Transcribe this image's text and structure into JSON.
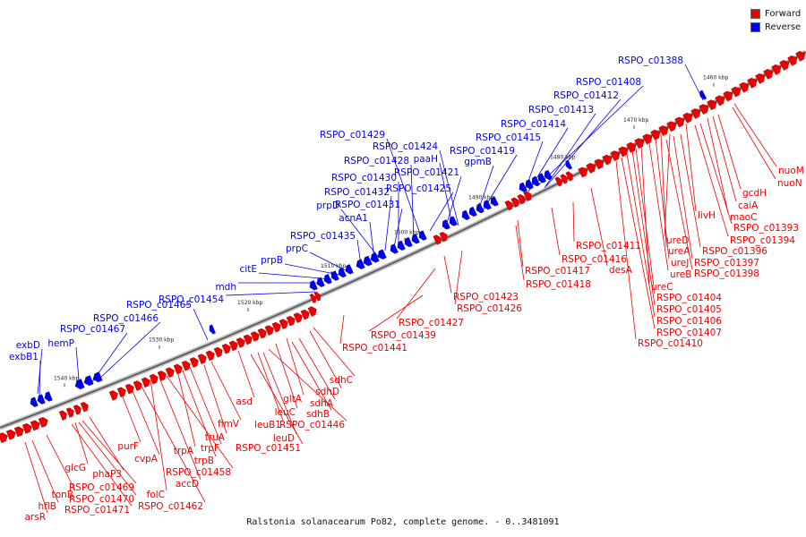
{
  "legend": [
    {
      "label": "Forward",
      "color": "#ee0000"
    },
    {
      "label": "Reverse",
      "color": "#0000ee"
    }
  ],
  "caption": "Ralstonia solanacearum Po82, complete genome. - 0..3481091",
  "ticks": [
    "1460 kbp",
    "1470 kbp",
    "1480 kbp",
    "1490 kbp",
    "1500 kbp",
    "1510 kbp",
    "1520 kbp",
    "1530 kbp",
    "1540 kbp"
  ],
  "colors": {
    "forward": "#ee0000",
    "reverse": "#0000ee",
    "backbone": "#888888"
  },
  "reverse_labels": [
    "RSPO_c01388",
    "RSPO_c01408",
    "RSPO_c01412",
    "RSPO_c01413",
    "RSPO_c01414",
    "RSPO_c01415",
    "RSPO_c01419",
    "gpmB",
    "RSPO_c01429",
    "RSPO_c01424",
    "paaH",
    "RSPO_c01428",
    "RSPO_c01421",
    "RSPO_c01430",
    "RSPO_c01425",
    "RSPO_c01432",
    "RSPO_c01431",
    "prpD",
    "acnA1",
    "RSPO_c01435",
    "prpC",
    "prpB",
    "citE",
    "mdh",
    "RSPO_c01454",
    "RSPO_c01465",
    "RSPO_c01466",
    "RSPO_c01467",
    "hemP",
    "exbD",
    "exbB1"
  ],
  "forward_labels_right": [
    "nuoM",
    "nuoN",
    "gcdH",
    "caiA",
    "maoC",
    "livH",
    "RSPO_c01393",
    "RSPO_c01394",
    "ureD",
    "RSPO_c01396",
    "ureA",
    "RSPO_c01397",
    "ureJ",
    "RSPO_c01398",
    "ureB",
    "ureC",
    "RSPO_c01404",
    "RSPO_c01405",
    "RSPO_c01406",
    "RSPO_c01407",
    "RSPO_c01410",
    "RSPO_c01411",
    "RSPO_c01416",
    "desA",
    "RSPO_c01417",
    "RSPO_c01418",
    "RSPO_c01423",
    "RSPO_c01426",
    "RSPO_c01427",
    "RSPO_c01439",
    "RSPO_c01441"
  ],
  "forward_labels_left": [
    "sdhC",
    "sdhD",
    "gltA",
    "sdhA",
    "leuC",
    "sdhB",
    "RSPO_c01446",
    "asd",
    "leuB1",
    "leuD",
    "RSPO_c01451",
    "fimV",
    "truA",
    "trpF",
    "trpA",
    "trpB",
    "RSPO_c01458",
    "accD",
    "folC",
    "RSPO_c01462",
    "cvpA",
    "purF",
    "phaP3",
    "glcG",
    "RSPO_c01469",
    "RSPO_c01470",
    "RSPO_c01471",
    "tonB",
    "hflB",
    "arsR"
  ]
}
